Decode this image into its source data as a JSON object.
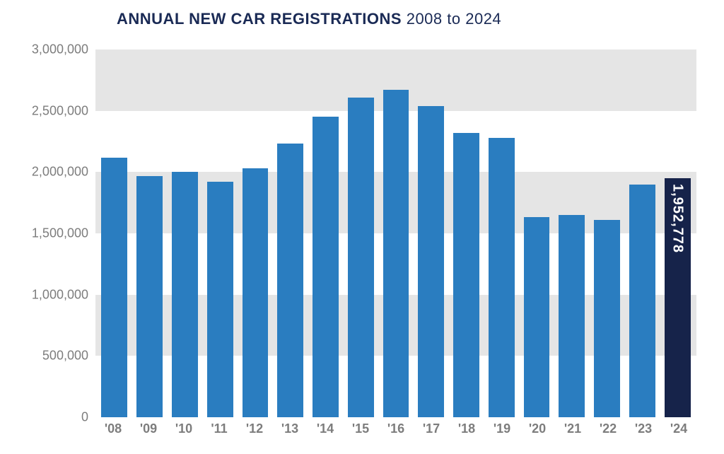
{
  "chart": {
    "type": "bar",
    "title_bold": "ANNUAL NEW CAR REGISTRATIONS",
    "title_light": "2008 to 2024",
    "title_color": "#1a2a55",
    "title_fontsize": 22,
    "background_color": "#ffffff",
    "axis_label_color": "#7d7d7d",
    "axis_label_fontsize": 18,
    "band_color": "#e5e5e5",
    "ylim": [
      0,
      3000000
    ],
    "ytick_step": 500000,
    "yticks": [
      {
        "value": 0,
        "label": "0"
      },
      {
        "value": 500000,
        "label": "500,000"
      },
      {
        "value": 1000000,
        "label": "1,000,000"
      },
      {
        "value": 1500000,
        "label": "1,500,000"
      },
      {
        "value": 2000000,
        "label": "2,000,000"
      },
      {
        "value": 2500000,
        "label": "2,500,000"
      },
      {
        "value": 3000000,
        "label": "3,000,000"
      }
    ],
    "bar_width_ratio": 0.74,
    "default_bar_color": "#2a7dc0",
    "highlight_bar_color": "#16234a",
    "value_label_color": "#ffffff",
    "value_label_fontsize": 20,
    "bars": [
      {
        "label": "'08",
        "value": 2120000,
        "color": "#2a7dc0"
      },
      {
        "label": "'09",
        "value": 1970000,
        "color": "#2a7dc0"
      },
      {
        "label": "'10",
        "value": 2000000,
        "color": "#2a7dc0"
      },
      {
        "label": "'11",
        "value": 1920000,
        "color": "#2a7dc0"
      },
      {
        "label": "'12",
        "value": 2030000,
        "color": "#2a7dc0"
      },
      {
        "label": "'13",
        "value": 2230000,
        "color": "#2a7dc0"
      },
      {
        "label": "'14",
        "value": 2450000,
        "color": "#2a7dc0"
      },
      {
        "label": "'15",
        "value": 2610000,
        "color": "#2a7dc0"
      },
      {
        "label": "'16",
        "value": 2670000,
        "color": "#2a7dc0"
      },
      {
        "label": "'17",
        "value": 2540000,
        "color": "#2a7dc0"
      },
      {
        "label": "'18",
        "value": 2320000,
        "color": "#2a7dc0"
      },
      {
        "label": "'19",
        "value": 2280000,
        "color": "#2a7dc0"
      },
      {
        "label": "'20",
        "value": 1630000,
        "color": "#2a7dc0"
      },
      {
        "label": "'21",
        "value": 1650000,
        "color": "#2a7dc0"
      },
      {
        "label": "'22",
        "value": 1610000,
        "color": "#2a7dc0"
      },
      {
        "label": "'23",
        "value": 1900000,
        "color": "#2a7dc0"
      },
      {
        "label": "'24",
        "value": 1952778,
        "color": "#16234a",
        "value_label": "1,952,778"
      }
    ]
  }
}
